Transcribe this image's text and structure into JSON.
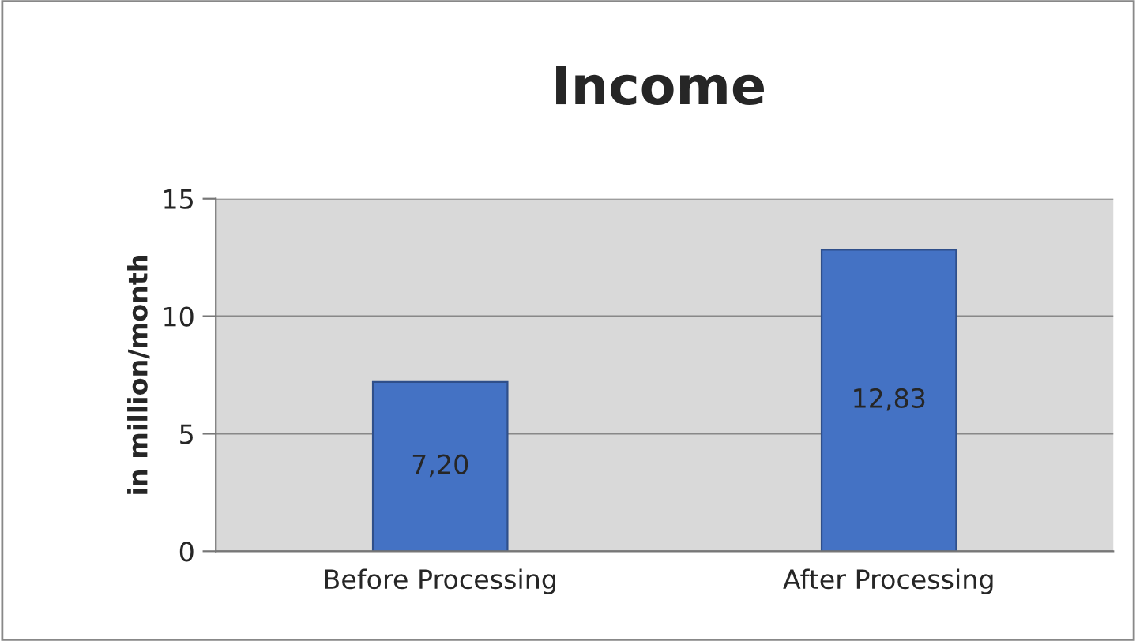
{
  "chart_data": {
    "type": "bar",
    "title": "Income",
    "ylabel": "in million/month",
    "categories": [
      "Before Processing",
      "After Processing"
    ],
    "values": [
      7.2,
      12.83
    ],
    "value_labels": [
      "7,20",
      "12,83"
    ],
    "color": "#4472c4",
    "ylim": [
      0,
      15
    ],
    "yticks": [
      0,
      5,
      10,
      15
    ],
    "grid": "y",
    "legend": false
  }
}
